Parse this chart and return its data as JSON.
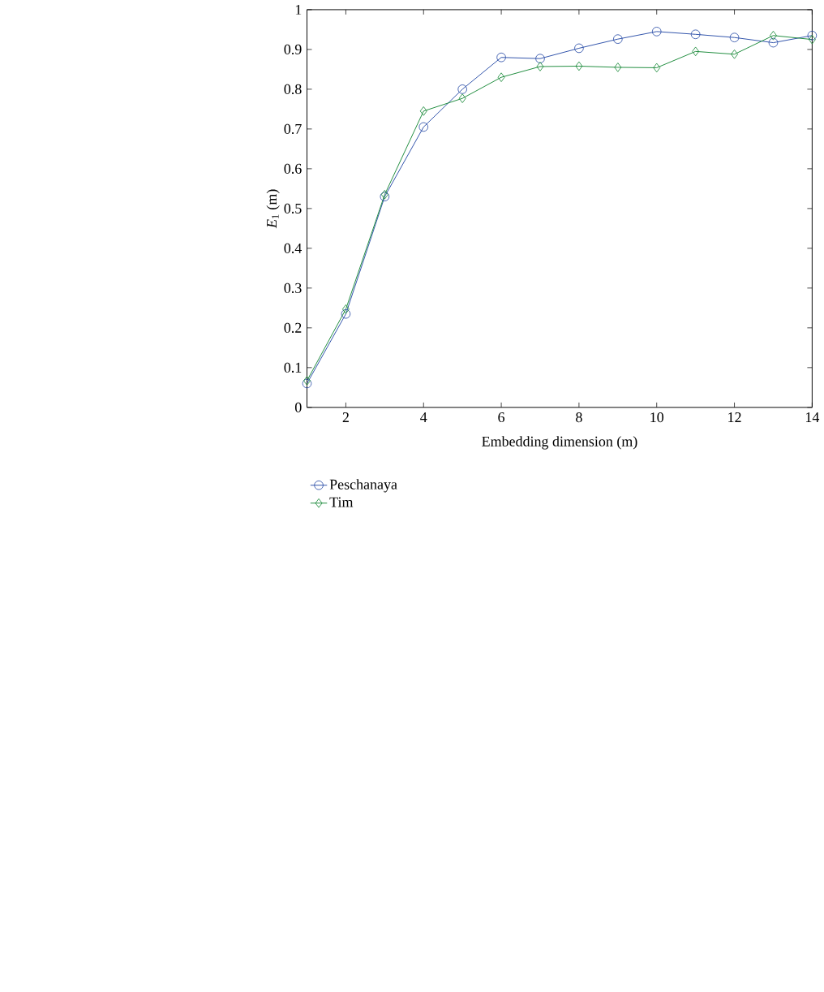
{
  "chart_data": {
    "type": "line",
    "xlabel": "Embedding dimension (m)",
    "ylabel": "*E*$_{1}$ (m)",
    "x": [
      1,
      2,
      3,
      4,
      5,
      6,
      7,
      8,
      9,
      10,
      11,
      12,
      13,
      14
    ],
    "series": [
      {
        "name": "Peschanaya",
        "color": "#2b4ea8",
        "marker": "circle",
        "values": [
          0.06,
          0.235,
          0.53,
          0.705,
          0.8,
          0.88,
          0.877,
          0.903,
          0.926,
          0.945,
          0.938,
          0.93,
          0.917,
          0.935
        ]
      },
      {
        "name": "Tim",
        "color": "#1a8a3a",
        "marker": "diamond",
        "values": [
          0.067,
          0.247,
          0.535,
          0.745,
          0.777,
          0.83,
          0.857,
          0.858,
          0.855,
          0.854,
          0.895,
          0.888,
          0.935,
          0.925
        ]
      }
    ],
    "xlim": [
      1,
      14
    ],
    "ylim": [
      0,
      1
    ],
    "xticks": [
      2,
      4,
      6,
      8,
      10,
      12,
      14
    ],
    "yticks": [
      0,
      0.1,
      0.2,
      0.3,
      0.4,
      0.5,
      0.6,
      0.7,
      0.8,
      0.9,
      1
    ],
    "grid": false,
    "legend": "bottom left",
    "line_style": "solid"
  }
}
